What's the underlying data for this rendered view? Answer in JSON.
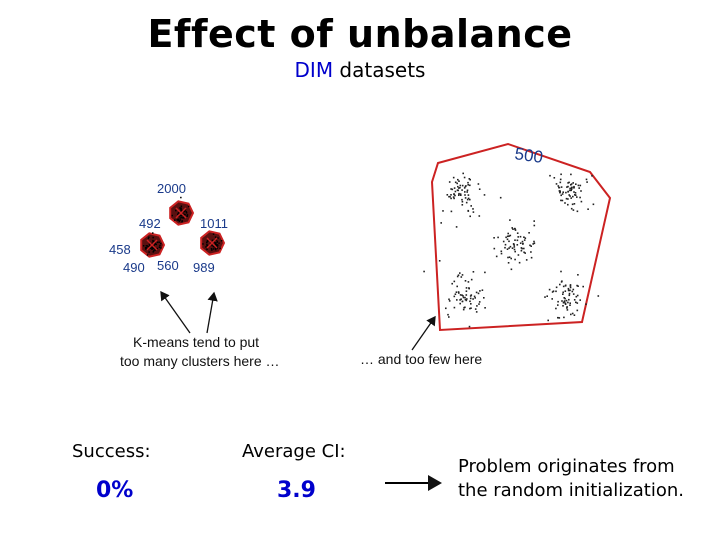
{
  "slide": {
    "title": "Effect of unbalance",
    "subtitle_highlight": "DIM",
    "subtitle_rest": " datasets"
  },
  "figure": {
    "left_cluster_counts": [
      "2000",
      "492",
      "1011",
      "458",
      "490",
      "560",
      "989"
    ],
    "right_cluster_count": "500",
    "note_left_line1": "K-means tend to put",
    "note_left_line2": "too many clusters here …",
    "note_right": "… and too few here"
  },
  "stats": {
    "success_label": "Success:",
    "success_value": "0%",
    "ci_label": "Average CI:",
    "ci_value": "3.9"
  },
  "conclusion": {
    "line1": "Problem originates from",
    "line2": "the random initialization."
  },
  "colors": {
    "accent_blue": "#0000cc",
    "partition_red": "#cc2222",
    "label_blue": "#1a3a8a"
  }
}
